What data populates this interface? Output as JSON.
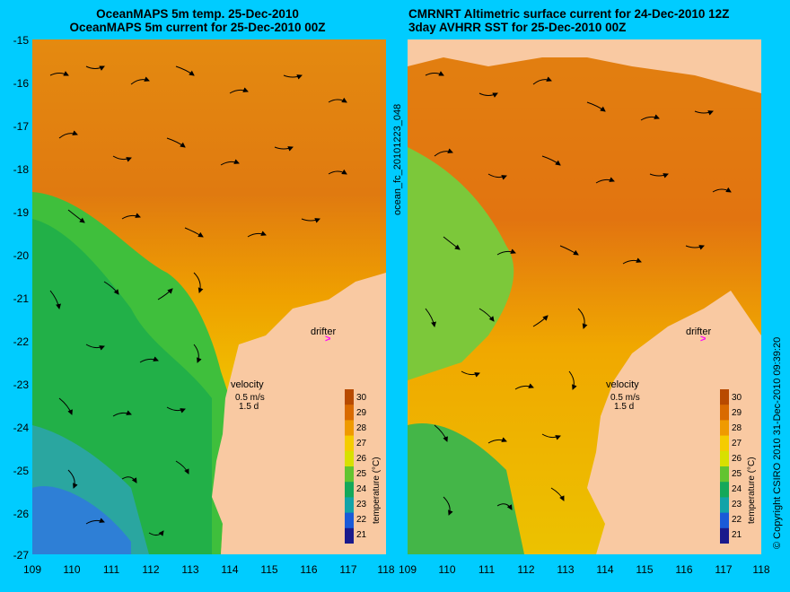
{
  "left_panel": {
    "title_line1": "OceanMAPS 5m temp. 25-Dec-2010",
    "title_line2": "OceanMAPS 5m current for 25-Dec-2010 00Z"
  },
  "right_panel": {
    "title_line1": "CMRNRT Altimetric surface current for 24-Dec-2010 12Z",
    "title_line2": "3day AVHRR SST for 25-Dec-2010 00Z"
  },
  "map": {
    "latitude_ticks": [
      "-15",
      "-16",
      "-17",
      "-18",
      "-19",
      "-20",
      "-21",
      "-22",
      "-23",
      "-24",
      "-25",
      "-26",
      "-27"
    ],
    "longitude_ticks": [
      "109",
      "110",
      "111",
      "112",
      "113",
      "114",
      "115",
      "116",
      "117",
      "118"
    ],
    "drifter_label": "drifter",
    "velocity_label": "velocity",
    "velocity_scale": "0.5 m/s",
    "velocity_time": "1.5 d"
  },
  "colorbar": {
    "label": "temperature (°C)",
    "ticks": [
      "30",
      "29",
      "28",
      "27",
      "26",
      "25",
      "24",
      "23",
      "22",
      "21"
    ],
    "colors": [
      "#b84a00",
      "#d96a00",
      "#ef9a00",
      "#f5cc00",
      "#d8e000",
      "#62c430",
      "#14a85a",
      "#12a3a8",
      "#1a5ad8",
      "#1a1a8c"
    ]
  },
  "side_text": {
    "run_id": "ocean_fc_20101223_048",
    "copyright": "© Copyright CSIRO 2010   31-Dec-2010 09:39:20"
  },
  "colors": {
    "background": "#00ccff",
    "land": "#f9c9a2",
    "drifter_marker": "#ff00ff"
  }
}
